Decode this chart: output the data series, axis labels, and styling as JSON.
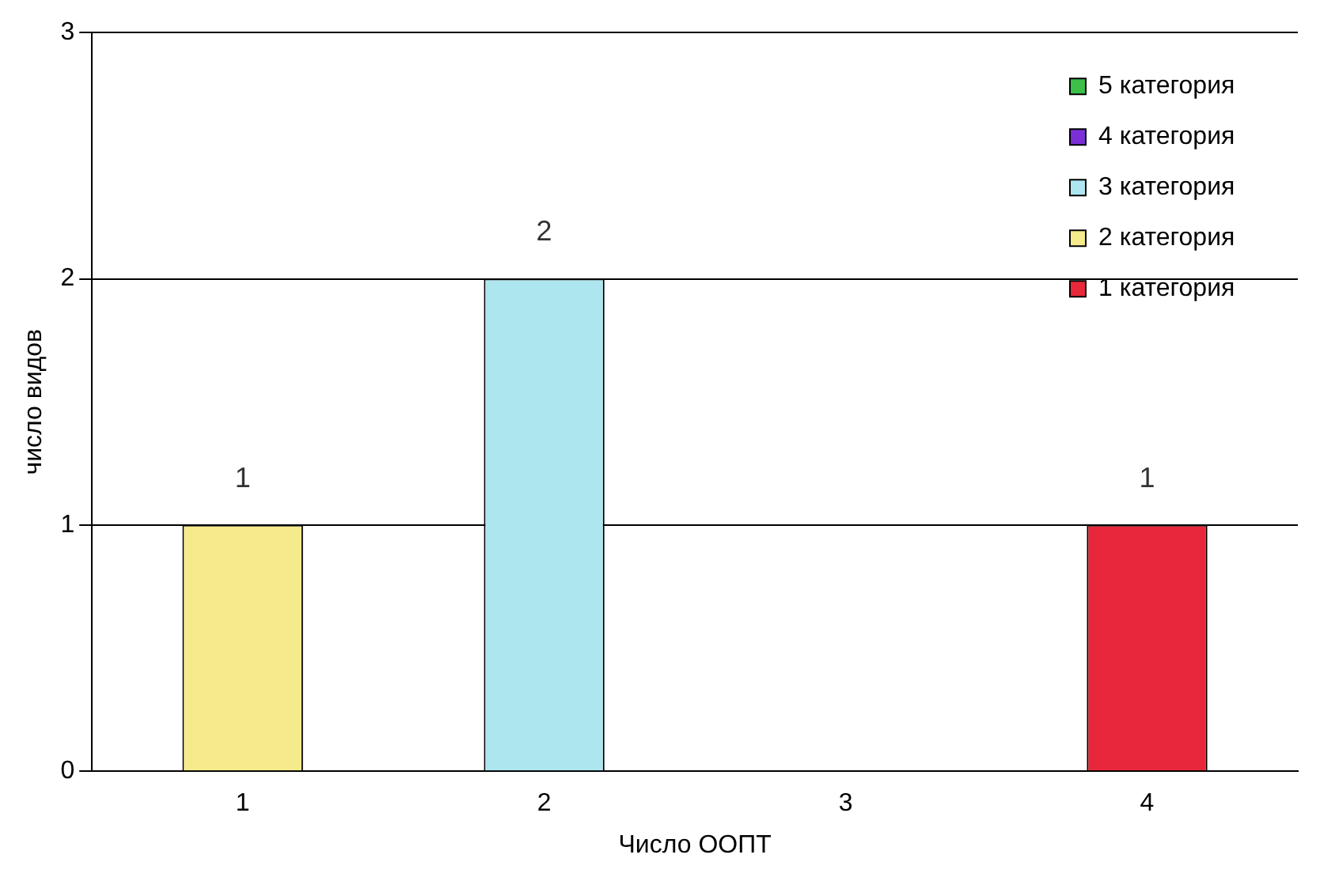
{
  "chart_data": {
    "type": "bar",
    "stacked": true,
    "xlabel": "Число ООПТ",
    "ylabel": "число видов",
    "categories": [
      "1",
      "2",
      "3",
      "4"
    ],
    "series": [
      {
        "name": "1 категория",
        "color": "#e8283a",
        "values": [
          null,
          null,
          null,
          1
        ]
      },
      {
        "name": "2 категория",
        "color": "#f5ea8c",
        "values": [
          1,
          null,
          null,
          null
        ]
      },
      {
        "name": "3 категория",
        "color": "#aee6ef",
        "values": [
          null,
          2,
          null,
          null
        ]
      },
      {
        "name": "4 категория",
        "color": "#7b2fd6",
        "values": [
          null,
          null,
          null,
          null
        ]
      },
      {
        "name": "5 категория",
        "color": "#3cc04a",
        "values": [
          null,
          null,
          null,
          null
        ]
      }
    ],
    "totals": [
      "1",
      "2",
      null,
      "1"
    ],
    "ylim": [
      0,
      3
    ],
    "yticks": [
      0,
      1,
      2,
      3
    ],
    "grid": "y",
    "legend": "top right"
  }
}
